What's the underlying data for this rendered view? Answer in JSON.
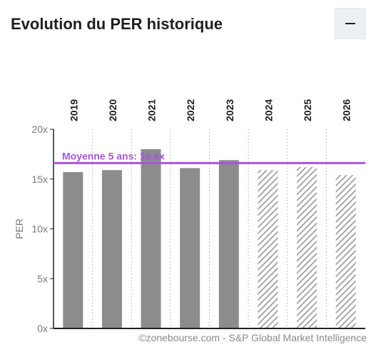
{
  "header": {
    "title": "Evolution du PER historique",
    "collapse_icon": "minus-icon"
  },
  "credit": "©zonebourse.com - S&P Global Market Intelligence",
  "chart_data": {
    "type": "bar",
    "title": "Evolution du PER historique",
    "ylabel": "PER",
    "xlabel": "",
    "categories": [
      "2019",
      "2020",
      "2021",
      "2022",
      "2023",
      "2024",
      "2025",
      "2026"
    ],
    "values": [
      15.7,
      15.9,
      18.0,
      16.1,
      16.9,
      15.9,
      16.2,
      15.4
    ],
    "estimated": [
      false,
      false,
      false,
      false,
      false,
      true,
      true,
      true
    ],
    "ylim": [
      0,
      20
    ],
    "yticks": [
      0,
      5,
      10,
      15,
      20
    ],
    "ytick_labels": [
      "0x",
      "5x",
      "10x",
      "15x",
      "20x"
    ],
    "average": {
      "label": "Moyenne 5 ans: 16.6x",
      "value": 16.6
    },
    "colors": {
      "bar": "#8c8c8c",
      "hatch": "#9e9e9e",
      "average": "#a855d8"
    },
    "grid": "vertical-dotted",
    "legend": "none"
  }
}
